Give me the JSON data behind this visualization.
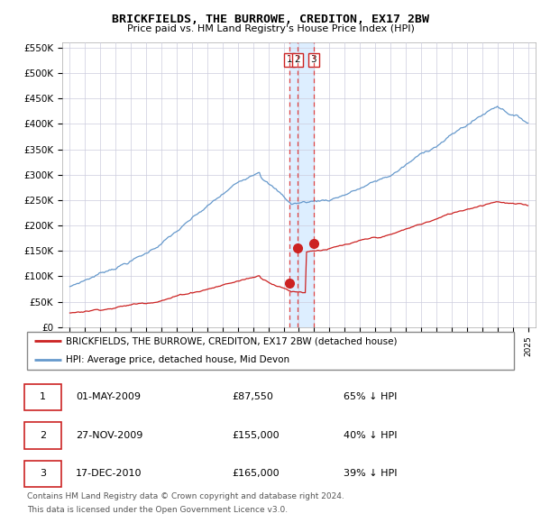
{
  "title": "BRICKFIELDS, THE BURROWE, CREDITON, EX17 2BW",
  "subtitle": "Price paid vs. HM Land Registry's House Price Index (HPI)",
  "legend_line1": "BRICKFIELDS, THE BURROWE, CREDITON, EX17 2BW (detached house)",
  "legend_line2": "HPI: Average price, detached house, Mid Devon",
  "footnote1": "Contains HM Land Registry data © Crown copyright and database right 2024.",
  "footnote2": "This data is licensed under the Open Government Licence v3.0.",
  "transactions": [
    {
      "num": 1,
      "date": "01-MAY-2009",
      "price": "£87,550",
      "hpi": "65% ↓ HPI",
      "year": 2009.37
    },
    {
      "num": 2,
      "date": "27-NOV-2009",
      "price": "£155,000",
      "hpi": "40% ↓ HPI",
      "year": 2009.91
    },
    {
      "num": 3,
      "date": "17-DEC-2010",
      "price": "£165,000",
      "hpi": "39% ↓ HPI",
      "year": 2010.96
    }
  ],
  "vline_x1": 2009.37,
  "vline_x2": 2009.91,
  "vline_x3": 2010.96,
  "point1_x": 2009.37,
  "point1_y": 87550,
  "point2_x": 2009.91,
  "point2_y": 155000,
  "point3_x": 2010.96,
  "point3_y": 165000,
  "hpi_color": "#6699cc",
  "price_color": "#cc2222",
  "shade_color": "#ddeeff",
  "background_color": "#ffffff",
  "grid_color": "#ccccdd",
  "ylim_min": 0,
  "ylim_max": 560000,
  "xlim_min": 1994.5,
  "xlim_max": 2025.5,
  "yticks": [
    0,
    50000,
    100000,
    150000,
    200000,
    250000,
    300000,
    350000,
    400000,
    450000,
    500000,
    550000
  ],
  "ytick_labels": [
    "£0",
    "£50K",
    "£100K",
    "£150K",
    "£200K",
    "£250K",
    "£300K",
    "£350K",
    "£400K",
    "£450K",
    "£500K",
    "£550K"
  ]
}
